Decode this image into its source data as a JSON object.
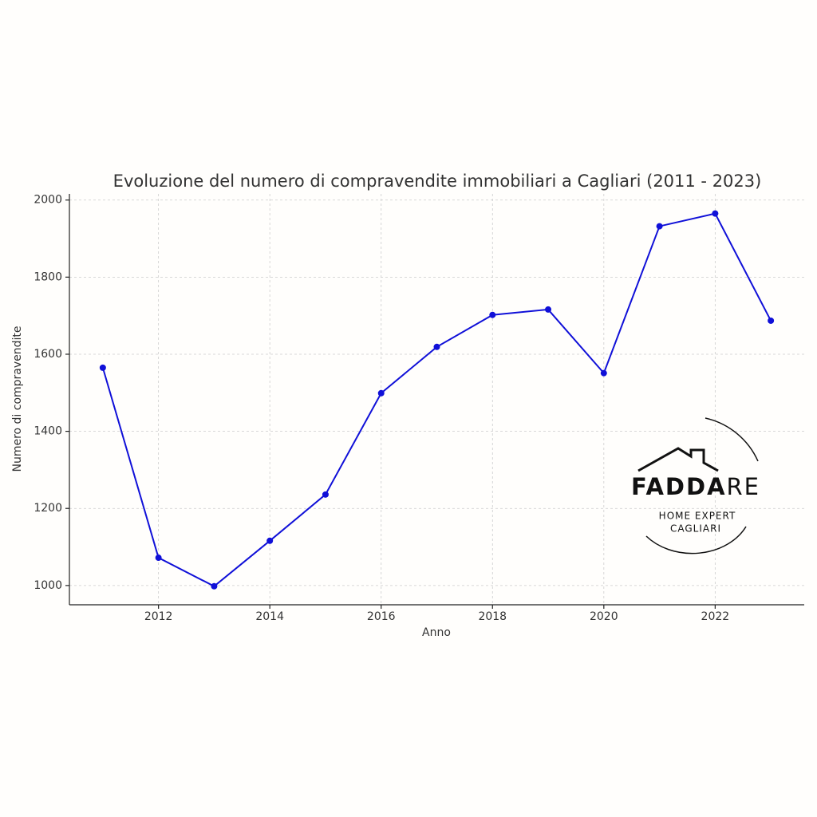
{
  "chart_data": {
    "type": "line",
    "title": "Evoluzione del numero di compravendite immobiliari a Cagliari (2011 - 2023)",
    "xlabel": "Anno",
    "ylabel": "Numero di compravendite",
    "x": [
      2011,
      2012,
      2013,
      2014,
      2015,
      2016,
      2017,
      2018,
      2019,
      2020,
      2021,
      2022,
      2023
    ],
    "series": [
      {
        "name": "Compravendite",
        "color": "#1010d8",
        "values": [
          1565,
          1072,
          998,
          1116,
          1236,
          1499,
          1619,
          1702,
          1716,
          1551,
          1932,
          1965,
          1687
        ]
      }
    ],
    "xlim": [
      2010.4,
      2023.6
    ],
    "xticks": [
      2012,
      2014,
      2016,
      2018,
      2020,
      2022
    ],
    "ylim": [
      950,
      2016
    ],
    "yticks": [
      1000,
      1200,
      1400,
      1600,
      1800,
      2000
    ],
    "grid": true,
    "legend": false
  },
  "watermark": {
    "brand": [
      "FADDA",
      "RE"
    ],
    "tagline": [
      "HOME EXPERT",
      "CAGLIARI"
    ]
  }
}
